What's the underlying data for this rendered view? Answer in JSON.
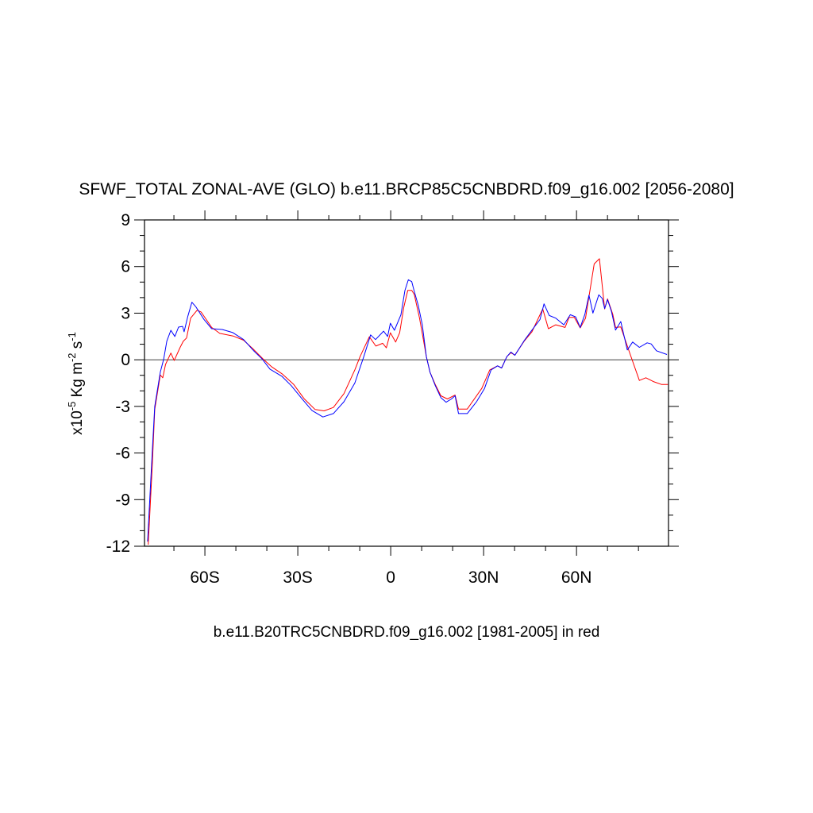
{
  "chart_data": {
    "type": "line",
    "title": "SFWF_TOTAL ZONAL-AVE (GLO) b.e11.BRCP85C5CNBDRD.f09_g16.002 [2056-2080]",
    "subtitle": "b.e11.B20TRC5CNBDRD.f09_g16.002 [1981-2005] in red",
    "ylabel": {
      "base": "x10",
      "exp1": "-5",
      "mid": " Kg m",
      "exp2": "-2",
      "mid2": " s",
      "exp3": "-1"
    },
    "xlim": [
      -79.5,
      89.7
    ],
    "ylim": [
      -12,
      9
    ],
    "x_ticks": [
      {
        "value": -60,
        "label": "60S"
      },
      {
        "value": -30,
        "label": "30S"
      },
      {
        "value": 0,
        "label": "0"
      },
      {
        "value": 30,
        "label": "30N"
      },
      {
        "value": 60,
        "label": "60N"
      }
    ],
    "y_ticks": [
      {
        "value": 9,
        "label": "9"
      },
      {
        "value": 6,
        "label": "6"
      },
      {
        "value": 3,
        "label": "3"
      },
      {
        "value": 0,
        "label": "0"
      },
      {
        "value": -3,
        "label": "-3"
      },
      {
        "value": -6,
        "label": "-6"
      },
      {
        "value": -9,
        "label": "-9"
      },
      {
        "value": -12,
        "label": "-12"
      }
    ],
    "reference_line": 0,
    "series": [
      {
        "name": "BRCP85 2056-2080",
        "color": "#0000ff",
        "points": [
          [
            -78.5,
            -11.7
          ],
          [
            -77,
            -5.9
          ],
          [
            -76.2,
            -3.0
          ],
          [
            -74.4,
            -0.8
          ],
          [
            -73.3,
            0.05
          ],
          [
            -72.3,
            1.2
          ],
          [
            -71,
            1.9
          ],
          [
            -69.7,
            1.5
          ],
          [
            -68.5,
            2.1
          ],
          [
            -67.2,
            2.15
          ],
          [
            -66.7,
            1.8
          ],
          [
            -65.5,
            2.8
          ],
          [
            -64.2,
            3.7
          ],
          [
            -62.9,
            3.4
          ],
          [
            -60.3,
            2.6
          ],
          [
            -57.8,
            2.0
          ],
          [
            -54.4,
            1.95
          ],
          [
            -51,
            1.75
          ],
          [
            -47.5,
            1.3
          ],
          [
            -44.1,
            0.55
          ],
          [
            -41.5,
            0.05
          ],
          [
            -39,
            -0.6
          ],
          [
            -35.1,
            -1.07
          ],
          [
            -32.1,
            -1.67
          ],
          [
            -28.7,
            -2.5
          ],
          [
            -25.4,
            -3.27
          ],
          [
            -21.9,
            -3.68
          ],
          [
            -18.5,
            -3.46
          ],
          [
            -15.1,
            -2.7
          ],
          [
            -11.6,
            -1.5
          ],
          [
            -8.7,
            0.2
          ],
          [
            -6.5,
            1.6
          ],
          [
            -4.9,
            1.3
          ],
          [
            -2.3,
            1.84
          ],
          [
            -1,
            1.5
          ],
          [
            -0.1,
            2.35
          ],
          [
            1.2,
            1.9
          ],
          [
            3.3,
            2.9
          ],
          [
            4.6,
            4.46
          ],
          [
            5.7,
            5.15
          ],
          [
            6.8,
            5.03
          ],
          [
            7.6,
            4.4
          ],
          [
            8.9,
            3.5
          ],
          [
            10.2,
            2.25
          ],
          [
            11.5,
            0.2
          ],
          [
            12.7,
            -0.8
          ],
          [
            14.4,
            -1.67
          ],
          [
            16.2,
            -2.44
          ],
          [
            17.9,
            -2.73
          ],
          [
            19.6,
            -2.52
          ],
          [
            20.8,
            -2.32
          ],
          [
            21.9,
            -3.46
          ],
          [
            24.7,
            -3.46
          ],
          [
            27.7,
            -2.7
          ],
          [
            30.3,
            -1.84
          ],
          [
            32.4,
            -0.65
          ],
          [
            34.5,
            -0.39
          ],
          [
            35.8,
            -0.53
          ],
          [
            37.5,
            0.2
          ],
          [
            38.8,
            0.5
          ],
          [
            40.1,
            0.29
          ],
          [
            43.1,
            1.23
          ],
          [
            45.6,
            1.91
          ],
          [
            48.2,
            2.59
          ],
          [
            49.5,
            3.6
          ],
          [
            51.2,
            2.85
          ],
          [
            53.3,
            2.68
          ],
          [
            55.9,
            2.25
          ],
          [
            58,
            2.9
          ],
          [
            59.7,
            2.76
          ],
          [
            61.2,
            2.08
          ],
          [
            62.7,
            2.93
          ],
          [
            64,
            4.16
          ],
          [
            65.3,
            3.0
          ],
          [
            67.2,
            4.18
          ],
          [
            68.3,
            3.95
          ],
          [
            69.1,
            3.3
          ],
          [
            70,
            3.87
          ],
          [
            71.3,
            3.1
          ],
          [
            72.6,
            1.91
          ],
          [
            74.3,
            2.46
          ],
          [
            76.4,
            0.63
          ],
          [
            78.1,
            1.14
          ],
          [
            80.3,
            0.8
          ],
          [
            82.8,
            1.09
          ],
          [
            84.1,
            1.02
          ],
          [
            85.8,
            0.58
          ],
          [
            89.2,
            0.34
          ]
        ]
      },
      {
        "name": "B20TRC 1981-2005",
        "color": "#ff0000",
        "points": [
          [
            -78.3,
            -11.9
          ],
          [
            -77,
            -6.8
          ],
          [
            -76.2,
            -3.2
          ],
          [
            -74.4,
            -0.98
          ],
          [
            -73.6,
            -1.16
          ],
          [
            -72.7,
            -0.3
          ],
          [
            -71,
            0.43
          ],
          [
            -69.9,
            -0.05
          ],
          [
            -68,
            0.8
          ],
          [
            -67,
            1.19
          ],
          [
            -65.9,
            1.4
          ],
          [
            -64.6,
            2.68
          ],
          [
            -62.5,
            3.19
          ],
          [
            -61.2,
            3.07
          ],
          [
            -57.8,
            2.08
          ],
          [
            -55.2,
            1.7
          ],
          [
            -50.9,
            1.53
          ],
          [
            -47.5,
            1.26
          ],
          [
            -44.1,
            0.63
          ],
          [
            -41.1,
            0.03
          ],
          [
            -38.5,
            -0.44
          ],
          [
            -35.1,
            -0.9
          ],
          [
            -31.3,
            -1.59
          ],
          [
            -27.9,
            -2.52
          ],
          [
            -24.4,
            -3.2
          ],
          [
            -21.5,
            -3.29
          ],
          [
            -18.5,
            -3.07
          ],
          [
            -15.1,
            -2.18
          ],
          [
            -11.6,
            -0.65
          ],
          [
            -9.9,
            0.2
          ],
          [
            -6.9,
            1.48
          ],
          [
            -4.8,
            0.88
          ],
          [
            -2.6,
            1.06
          ],
          [
            -1.4,
            0.77
          ],
          [
            -0.1,
            1.74
          ],
          [
            1.6,
            1.14
          ],
          [
            2.9,
            1.74
          ],
          [
            4.2,
            3.36
          ],
          [
            5.5,
            4.47
          ],
          [
            6.8,
            4.47
          ],
          [
            7.6,
            4.2
          ],
          [
            9.3,
            2.68
          ],
          [
            10.6,
            1.23
          ],
          [
            11.5,
            0.2
          ],
          [
            12.7,
            -0.8
          ],
          [
            14.4,
            -1.6
          ],
          [
            16.2,
            -2.32
          ],
          [
            18.3,
            -2.52
          ],
          [
            20.8,
            -2.27
          ],
          [
            21.9,
            -3.17
          ],
          [
            24.7,
            -3.17
          ],
          [
            29.4,
            -1.84
          ],
          [
            32,
            -0.65
          ],
          [
            34.5,
            -0.39
          ],
          [
            35.8,
            -0.53
          ],
          [
            37.5,
            0.2
          ],
          [
            38.8,
            0.45
          ],
          [
            40.1,
            0.3
          ],
          [
            43.1,
            1.2
          ],
          [
            45.6,
            1.8
          ],
          [
            49.1,
            3.27
          ],
          [
            50.9,
            2.0
          ],
          [
            53.3,
            2.25
          ],
          [
            56.3,
            2.08
          ],
          [
            57.6,
            2.73
          ],
          [
            59.3,
            2.73
          ],
          [
            61.2,
            2.05
          ],
          [
            62.9,
            2.68
          ],
          [
            65.7,
            6.17
          ],
          [
            67.4,
            6.5
          ],
          [
            69.1,
            3.27
          ],
          [
            70,
            3.92
          ],
          [
            71.7,
            2.93
          ],
          [
            72.6,
            2.08
          ],
          [
            74.3,
            2.11
          ],
          [
            77.3,
            0.37
          ],
          [
            80.3,
            -1.33
          ],
          [
            82.4,
            -1.16
          ],
          [
            85,
            -1.42
          ],
          [
            87.5,
            -1.59
          ],
          [
            89.5,
            -1.59
          ]
        ]
      }
    ]
  }
}
